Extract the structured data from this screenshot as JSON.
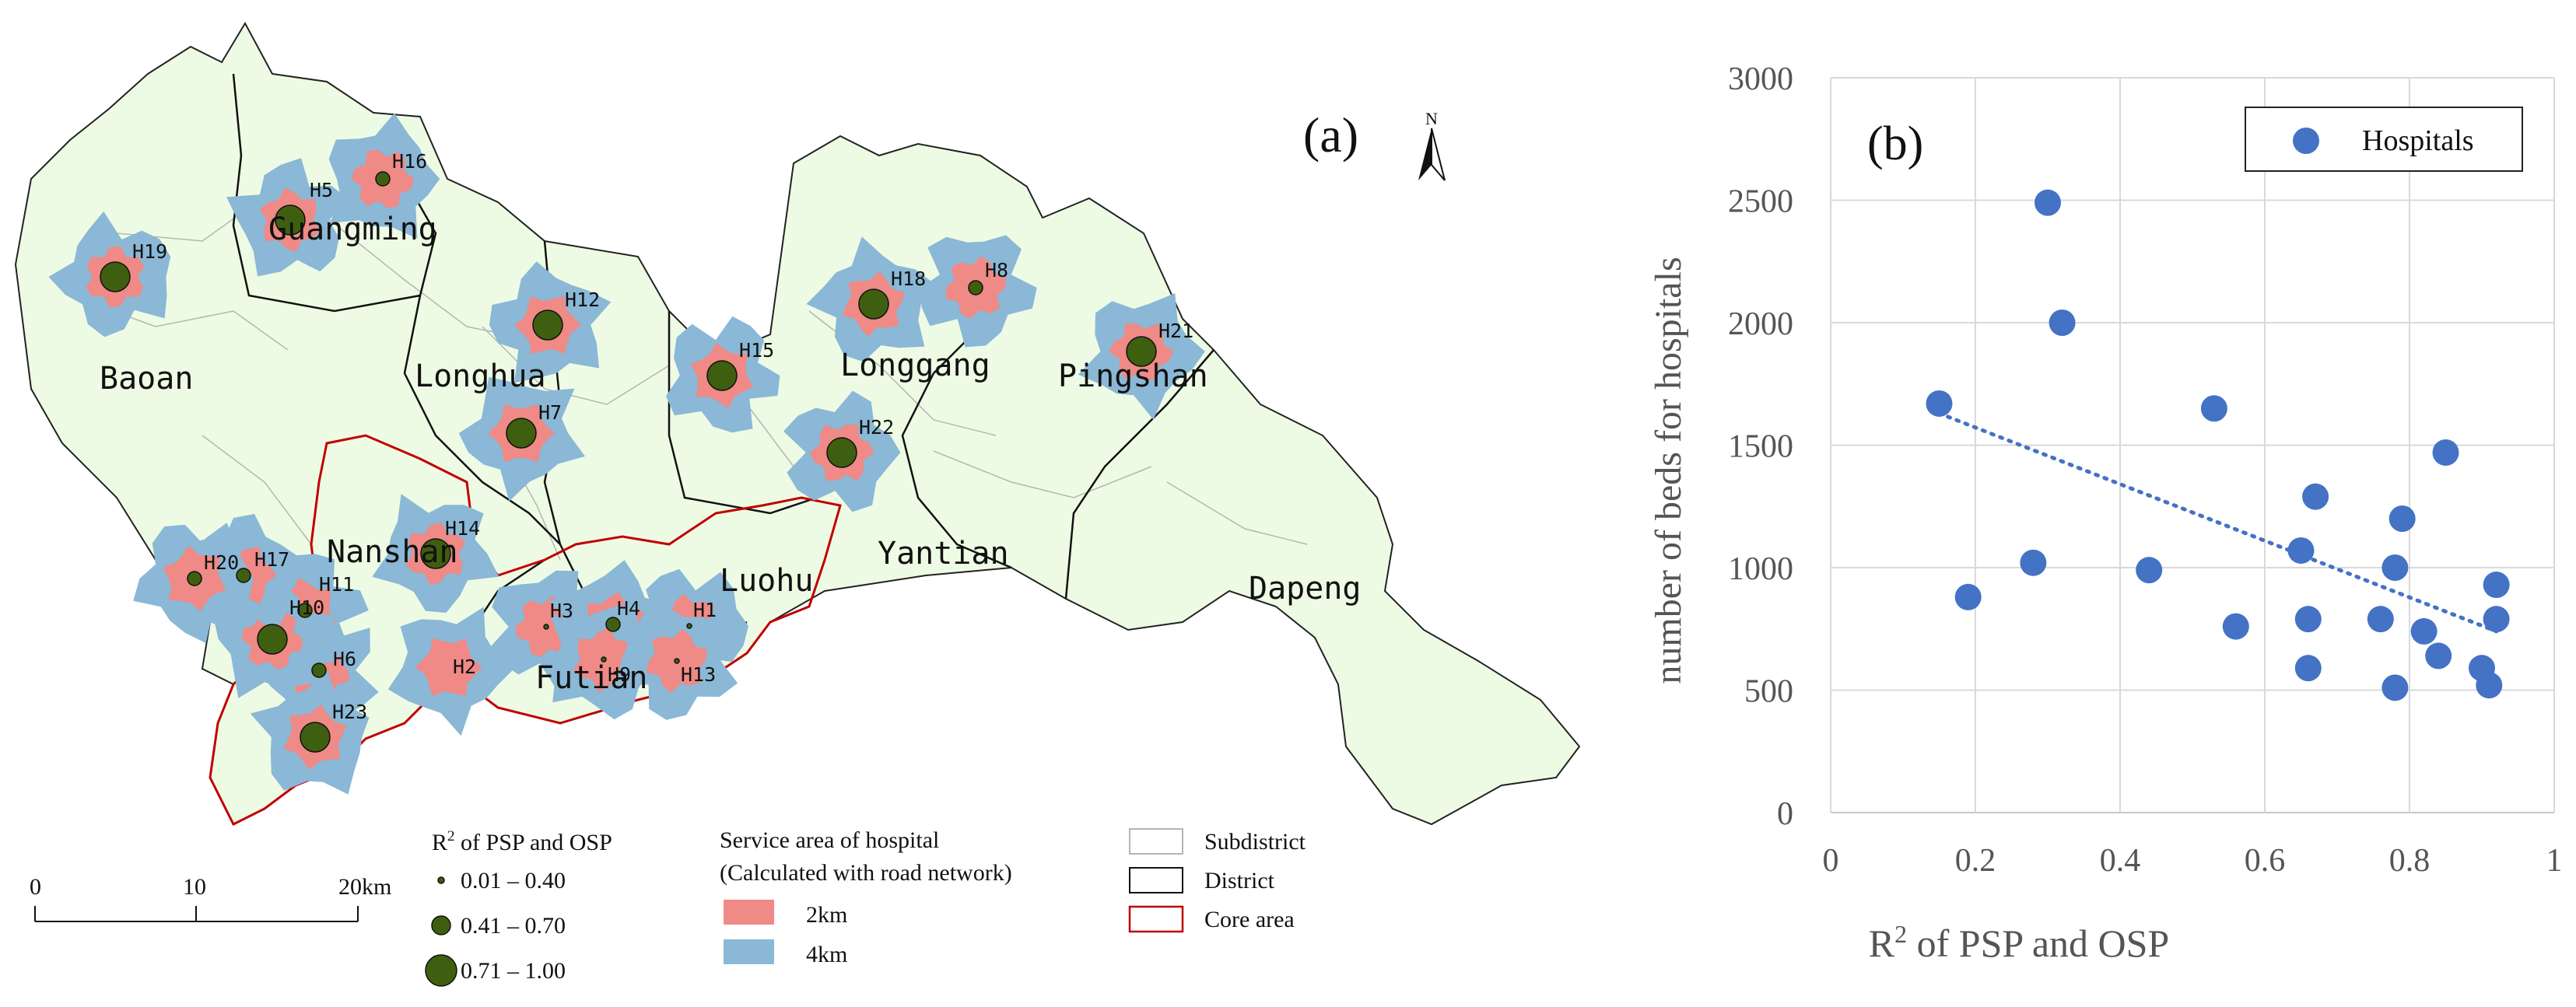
{
  "map": {
    "panel_label": "(a)",
    "north_label": "N",
    "colors": {
      "land": "#eefbe4",
      "ring_2km": "#ef8a87",
      "ring_4km": "#8ab8d6",
      "hospital_dot": "#3f5f10",
      "core_area": "#c00000"
    },
    "districts": [
      {
        "name": "Guangming"
      },
      {
        "name": "Baoan"
      },
      {
        "name": "Longhua"
      },
      {
        "name": "Longgang"
      },
      {
        "name": "Pingshan"
      },
      {
        "name": "Nanshan"
      },
      {
        "name": "Luohu"
      },
      {
        "name": "Yantian"
      },
      {
        "name": "Futian"
      },
      {
        "name": "Dapeng"
      }
    ],
    "hospitals": [
      {
        "label": "H1",
        "size": "small"
      },
      {
        "label": "H2",
        "size": "none"
      },
      {
        "label": "H3",
        "size": "small"
      },
      {
        "label": "H4",
        "size": "medium"
      },
      {
        "label": "H5",
        "size": "large"
      },
      {
        "label": "H6",
        "size": "medium"
      },
      {
        "label": "H7",
        "size": "large"
      },
      {
        "label": "H8",
        "size": "medium"
      },
      {
        "label": "H9",
        "size": "small"
      },
      {
        "label": "H10",
        "size": "medium"
      },
      {
        "label": "H11",
        "size": "large"
      },
      {
        "label": "H12",
        "size": "large"
      },
      {
        "label": "H13",
        "size": "small"
      },
      {
        "label": "H14",
        "size": "large"
      },
      {
        "label": "H15",
        "size": "large"
      },
      {
        "label": "H16",
        "size": "medium"
      },
      {
        "label": "H17",
        "size": "medium"
      },
      {
        "label": "H18",
        "size": "large"
      },
      {
        "label": "H19",
        "size": "large"
      },
      {
        "label": "H20",
        "size": "medium"
      },
      {
        "label": "H21",
        "size": "large"
      },
      {
        "label": "H22",
        "size": "large"
      },
      {
        "label": "H23",
        "size": "large"
      }
    ],
    "scale_bar": {
      "ticks": [
        "0",
        "10",
        "20km"
      ]
    },
    "legend_r2": {
      "title_prefix": "R",
      "title_sup": "2",
      "title_suffix": " of PSP and OSP",
      "items": [
        "0.01 – 0.40",
        "0.41 – 0.70",
        "0.71 – 1.00"
      ]
    },
    "legend_service": {
      "title_line1": "Service area of hospital",
      "title_line2": "(Calculated with road network)",
      "items": [
        "2km",
        "4km"
      ]
    },
    "legend_boundary": {
      "items": [
        "Subdistrict",
        "District",
        "Core area"
      ]
    }
  },
  "chart_data": {
    "type": "scatter",
    "panel_label": "(b)",
    "title": "",
    "xlabel_prefix": "R",
    "xlabel_sup": "2",
    "xlabel_suffix": " of PSP and OSP",
    "ylabel": "number of beds for hospitals",
    "xlim": [
      0,
      1
    ],
    "ylim": [
      0,
      3000
    ],
    "x_ticks": [
      0,
      0.2,
      0.4,
      0.6,
      0.8,
      1
    ],
    "x_tick_labels": [
      "0",
      "0.2",
      "0.4",
      "0.6",
      "0.8",
      "1"
    ],
    "y_ticks": [
      0,
      500,
      1000,
      1500,
      2000,
      2500,
      3000
    ],
    "y_tick_labels": [
      "0",
      "500",
      "1000",
      "1500",
      "2000",
      "2500",
      "3000"
    ],
    "grid": true,
    "legend_position": "top-right",
    "marker_color": "#4472c4",
    "series": [
      {
        "name": "Hospitals",
        "points": [
          {
            "x": 0.15,
            "y": 1670
          },
          {
            "x": 0.19,
            "y": 880
          },
          {
            "x": 0.28,
            "y": 1020
          },
          {
            "x": 0.3,
            "y": 2490
          },
          {
            "x": 0.32,
            "y": 2000
          },
          {
            "x": 0.44,
            "y": 990
          },
          {
            "x": 0.53,
            "y": 1650
          },
          {
            "x": 0.56,
            "y": 760
          },
          {
            "x": 0.65,
            "y": 1070
          },
          {
            "x": 0.66,
            "y": 790
          },
          {
            "x": 0.66,
            "y": 590
          },
          {
            "x": 0.67,
            "y": 1290
          },
          {
            "x": 0.76,
            "y": 790
          },
          {
            "x": 0.78,
            "y": 1000
          },
          {
            "x": 0.78,
            "y": 510
          },
          {
            "x": 0.79,
            "y": 1200
          },
          {
            "x": 0.82,
            "y": 740
          },
          {
            "x": 0.84,
            "y": 640
          },
          {
            "x": 0.85,
            "y": 1470
          },
          {
            "x": 0.9,
            "y": 590
          },
          {
            "x": 0.91,
            "y": 520
          },
          {
            "x": 0.92,
            "y": 930
          },
          {
            "x": 0.92,
            "y": 790
          }
        ]
      }
    ],
    "trendline": {
      "style": "dotted",
      "color": "#4472c4",
      "x_start": 0.15,
      "y_start": 1630,
      "x_end": 0.92,
      "y_end": 740
    }
  }
}
